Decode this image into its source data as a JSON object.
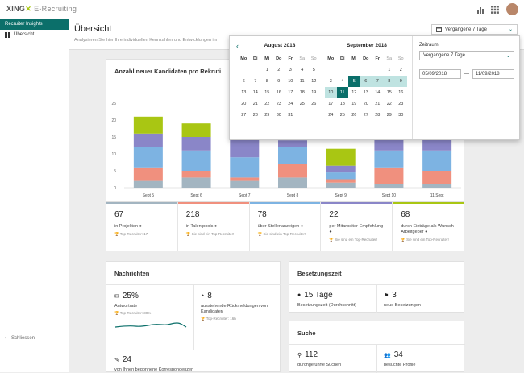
{
  "topbar": {
    "brand": "XING",
    "app": "E-Recruiting"
  },
  "sidebar": {
    "header": "Recruiter Insights",
    "items": [
      {
        "label": "Übersicht"
      }
    ],
    "close_label": "Schliessen"
  },
  "page": {
    "title": "Übersicht",
    "subtitle": "Analysieren Sie hier Ihre individuellen Kennzahlen und Entwicklungen im"
  },
  "range_dropdown": {
    "value": "Vergangene 7 Tage"
  },
  "chart_card": {
    "title": "Anzahl neuer Kandidaten pro Rekruti"
  },
  "chart_data": {
    "type": "bar",
    "stacked": true,
    "categories": [
      "Sept 5",
      "Sept 6",
      "Sept 7",
      "Sept 8",
      "Sept 9",
      "Sept 10",
      "11 Sept"
    ],
    "ylim": [
      0,
      25
    ],
    "yticks": [
      "0",
      "5",
      "10",
      "15",
      "20",
      "25"
    ],
    "series": [
      {
        "color": "#a3b5c1",
        "values": [
          2,
          3,
          2,
          3,
          1.5,
          1,
          1
        ]
      },
      {
        "color": "#f0907e",
        "values": [
          4,
          2,
          1,
          4,
          1,
          5,
          4
        ]
      },
      {
        "color": "#7db3e2",
        "values": [
          6,
          6,
          6,
          5,
          2,
          5,
          6
        ]
      },
      {
        "color": "#8a86c8",
        "values": [
          4,
          4,
          10,
          2,
          2,
          5,
          9
        ]
      },
      {
        "color": "#a9c613",
        "values": [
          5,
          4,
          0,
          0,
          5,
          0,
          0
        ]
      }
    ]
  },
  "stats": [
    {
      "color": "#a3b5c1",
      "value": "67",
      "label": "in Projekten",
      "sub": "Top-Recruiter: 17"
    },
    {
      "color": "#f0907e",
      "value": "218",
      "label": "in Talentpools",
      "sub": "Sie sind ein Top-Recruiter!"
    },
    {
      "color": "#7db3e2",
      "value": "78",
      "label": "über Stellenanzeigen",
      "sub": "Sie sind ein Top-Recruiter!"
    },
    {
      "color": "#8a86c8",
      "value": "22",
      "label": "per Mitarbeiter-Empfehlung",
      "sub": "Sie sind ein Top-Recruiter!"
    },
    {
      "color": "#a9c613",
      "value": "68",
      "label": "durch Einträge als Wunsch-Arbeitgeber",
      "sub": "Sie sind ein Top-Recruiter!"
    }
  ],
  "nachrichten": {
    "title": "Nachrichten",
    "rate_value": "25%",
    "rate_label": "Antwortrate",
    "rate_sub": "Top-Recruiter: 30%",
    "pending_value": "8",
    "pending_label": "ausstehende Rückmeldungen von Kandidaten",
    "pending_sub": "Top-Recruiter: 16h",
    "conv_value": "24",
    "conv_label": "von Ihnen begonnene Korrespondenzen"
  },
  "besetzungszeit": {
    "title": "Besetzungszeit",
    "days_value": "15 Tage",
    "days_label": "Besetzungszeit (Durchschnitt)",
    "new_value": "3",
    "new_label": "neue Besetzungen"
  },
  "suche": {
    "title": "Suche",
    "searches_value": "112",
    "searches_label": "durchgeführte Suchen",
    "profiles_value": "34",
    "profiles_label": "besuchte Profile"
  },
  "calendar": {
    "weekdays": [
      "Mo",
      "Di",
      "Mi",
      "Do",
      "Fr",
      "Sa",
      "So"
    ],
    "months": [
      {
        "title": "August 2018",
        "weeks": [
          [
            "",
            "",
            "1",
            "2",
            "3",
            "4",
            "5"
          ],
          [
            "6",
            "7",
            "8",
            "9",
            "10",
            "11",
            "12"
          ],
          [
            "13",
            "14",
            "15",
            "16",
            "17",
            "18",
            "19"
          ],
          [
            "20",
            "21",
            "22",
            "23",
            "24",
            "25",
            "26"
          ],
          [
            "27",
            "28",
            "29",
            "30",
            "31",
            "",
            ""
          ]
        ]
      },
      {
        "title": "September 2018",
        "weeks": [
          [
            "",
            "",
            "",
            "",
            "",
            "1",
            "2"
          ],
          [
            "3",
            "4",
            "5",
            "6",
            "7",
            "8",
            "9"
          ],
          [
            "10",
            "11",
            "12",
            "13",
            "14",
            "15",
            "16"
          ],
          [
            "17",
            "18",
            "19",
            "20",
            "21",
            "22",
            "23"
          ],
          [
            "24",
            "25",
            "26",
            "27",
            "28",
            "29",
            "30"
          ]
        ]
      }
    ],
    "range_label": "Zeitraum:",
    "range_value": "Vergangene 7 Tage",
    "from": "05/09/2018",
    "to": "11/09/2018",
    "separator": "—"
  },
  "colors": {
    "accent": "#0b6f6a",
    "range": "#bfe3e1",
    "brand": "#a6c60a"
  }
}
